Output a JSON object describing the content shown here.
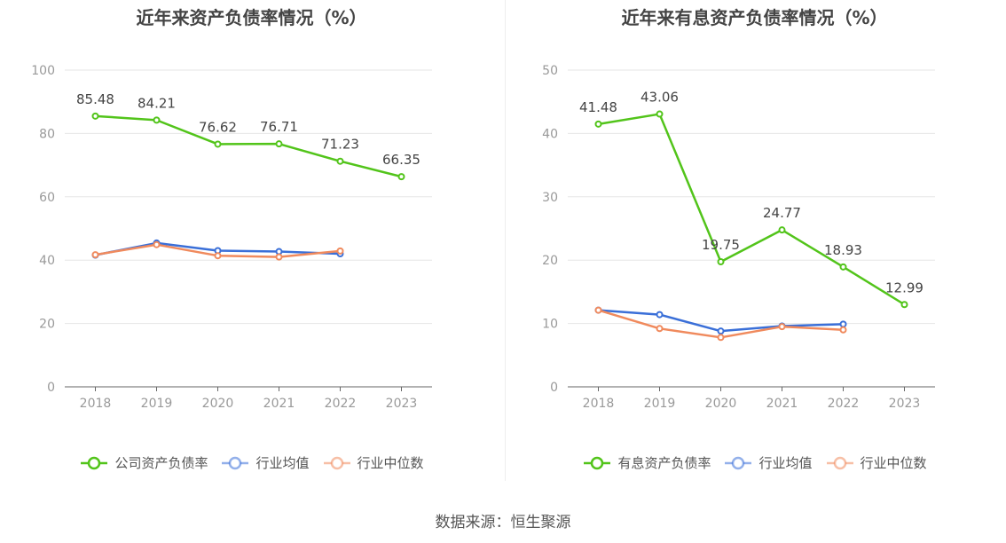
{
  "source": "数据来源：恒生聚源",
  "chart_data": [
    {
      "type": "line",
      "title": "近年来资产负债率情况（%）",
      "categories": [
        "2018",
        "2019",
        "2020",
        "2021",
        "2022",
        "2023"
      ],
      "ylim": [
        0,
        100
      ],
      "yticks": [
        0,
        20,
        40,
        60,
        80,
        100
      ],
      "grid": true,
      "legend_position": "bottom",
      "series": [
        {
          "name": "公司资产负债率",
          "color": "#52c41a",
          "values": [
            85.48,
            84.21,
            76.62,
            76.71,
            71.23,
            66.35
          ],
          "labels": [
            "85.48",
            "84.21",
            "76.62",
            "76.71",
            "71.23",
            "66.35"
          ]
        },
        {
          "name": "行业均值",
          "color": "#3a6fd8",
          "values": [
            41.6,
            45.4,
            43.0,
            42.7,
            42.0,
            null
          ]
        },
        {
          "name": "行业中位数",
          "color": "#f08a5d",
          "values": [
            41.7,
            44.9,
            41.4,
            41.0,
            42.9,
            null
          ]
        }
      ]
    },
    {
      "type": "line",
      "title": "近年来有息资产负债率情况（%）",
      "categories": [
        "2018",
        "2019",
        "2020",
        "2021",
        "2022",
        "2023"
      ],
      "ylim": [
        0,
        50
      ],
      "yticks": [
        0,
        10,
        20,
        30,
        40,
        50
      ],
      "grid": true,
      "legend_position": "bottom",
      "series": [
        {
          "name": "有息资产负债率",
          "color": "#52c41a",
          "values": [
            41.48,
            43.06,
            19.75,
            24.77,
            18.93,
            12.99
          ],
          "labels": [
            "41.48",
            "43.06",
            "19.75",
            "24.77",
            "18.93",
            "12.99"
          ]
        },
        {
          "name": "行业均值",
          "color": "#3a6fd8",
          "values": [
            12.1,
            11.4,
            8.8,
            9.6,
            9.9,
            null
          ]
        },
        {
          "name": "行业中位数",
          "color": "#f08a5d",
          "values": [
            12.1,
            9.2,
            7.8,
            9.5,
            9.0,
            null
          ]
        }
      ]
    }
  ]
}
